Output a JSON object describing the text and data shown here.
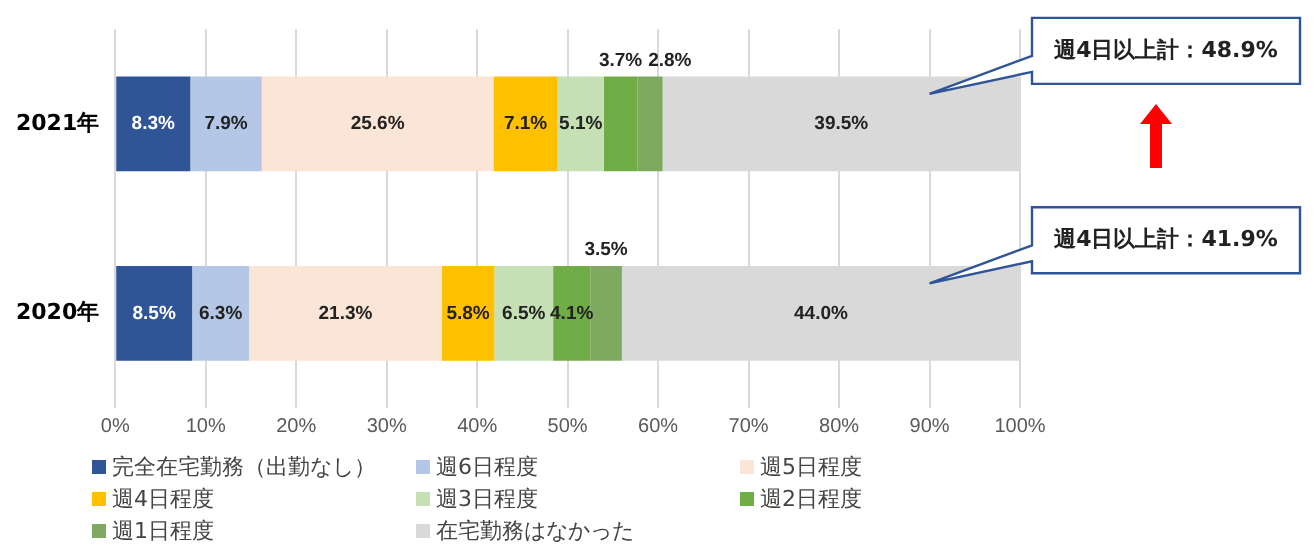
{
  "chart_data": {
    "type": "bar",
    "orientation": "horizontal",
    "stacked": true,
    "categories": [
      "2021年",
      "2020年"
    ],
    "series": [
      {
        "name": "完全在宅勤務（出勤なし）",
        "color": "#2f5597",
        "values": [
          8.3,
          8.5
        ],
        "value_labels": [
          "8.3%",
          "8.5%"
        ]
      },
      {
        "name": "週6日程度",
        "color": "#b4c7e7",
        "values": [
          7.9,
          6.3
        ],
        "value_labels": [
          "7.9%",
          "6.3%"
        ]
      },
      {
        "name": "週5日程度",
        "color": "#fbe5d6",
        "values": [
          25.6,
          21.3
        ],
        "value_labels": [
          "25.6%",
          "21.3%"
        ]
      },
      {
        "name": "週4日程度",
        "color": "#ffc000",
        "values": [
          7.1,
          5.8
        ],
        "value_labels": [
          "7.1%",
          "5.8%"
        ]
      },
      {
        "name": "週3日程度",
        "color": "#c5e0b4",
        "values": [
          5.1,
          6.5
        ],
        "value_labels": [
          "5.1%",
          "6.5%"
        ]
      },
      {
        "name": "週2日程度",
        "color": "#70ad47",
        "values": [
          3.7,
          4.1
        ],
        "value_labels": [
          "3.7%",
          "4.1%"
        ]
      },
      {
        "name": "週1日程度",
        "color": "#7fa860",
        "values": [
          2.8,
          3.5
        ],
        "value_labels": [
          "2.8%",
          "3.5%"
        ]
      },
      {
        "name": "在宅勤務はなかった",
        "color": "#d9d9d9",
        "values": [
          39.5,
          44.0
        ],
        "value_labels": [
          "39.5%",
          "44.0%"
        ]
      }
    ],
    "xlim": [
      0,
      100
    ],
    "xticks": [
      {
        "value": 0,
        "label": "0%"
      },
      {
        "value": 10,
        "label": "10%"
      },
      {
        "value": 20,
        "label": "20%"
      },
      {
        "value": 30,
        "label": "30%"
      },
      {
        "value": 40,
        "label": "40%"
      },
      {
        "value": 50,
        "label": "50%"
      },
      {
        "value": 60,
        "label": "60%"
      },
      {
        "value": 70,
        "label": "70%"
      },
      {
        "value": 80,
        "label": "80%"
      },
      {
        "value": 90,
        "label": "90%"
      },
      {
        "value": 100,
        "label": "100%"
      }
    ],
    "grid": "x",
    "legend": "bottom",
    "annotations": [
      "週4日以上計：48.9%",
      "週4日以上計：41.9%"
    ]
  }
}
